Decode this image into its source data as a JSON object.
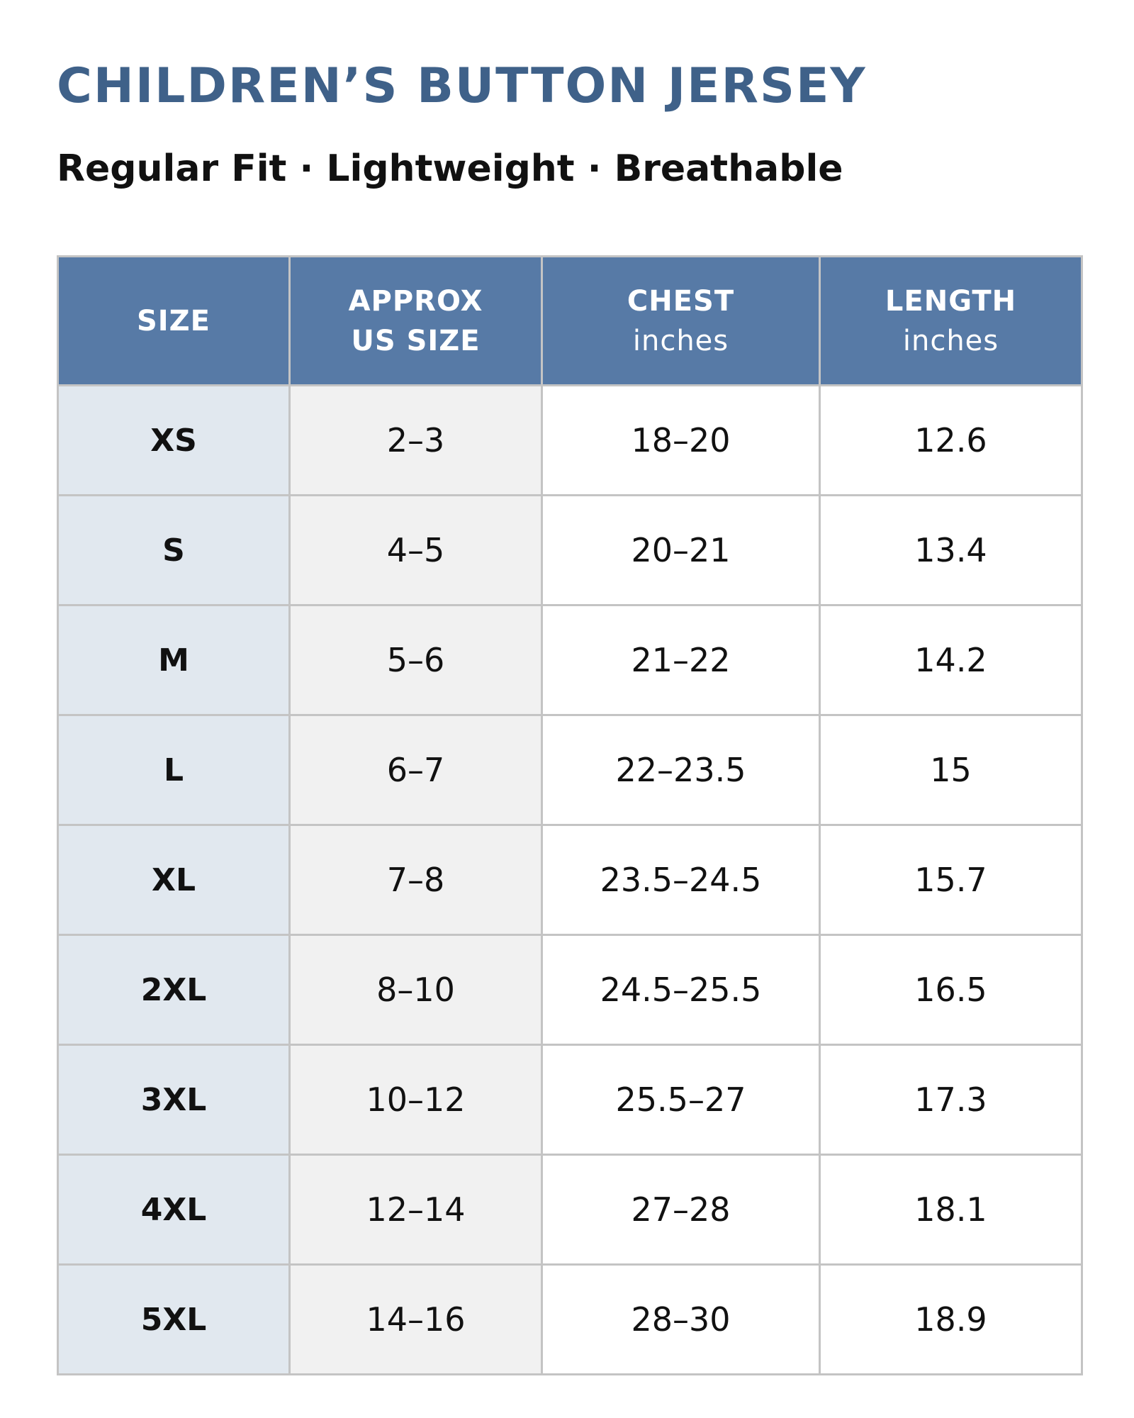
{
  "title": "CHILDREN’S BUTTON JERSEY",
  "subtitle": "Regular Fit · Lightweight · Breathable",
  "colors": {
    "title": "#3f6189",
    "header_bg": "#577aa6",
    "size_column_bg": "#e1e8ef",
    "us_column_bg": "#f1f1f1",
    "grid": "#c4c4c4"
  },
  "table": {
    "headers": [
      {
        "label": "SIZE",
        "unit": ""
      },
      {
        "label": "APPROX\nUS SIZE",
        "unit": ""
      },
      {
        "label": "CHEST",
        "unit": "inches"
      },
      {
        "label": "LENGTH",
        "unit": "inches"
      }
    ],
    "rows": [
      {
        "size": "XS",
        "us": "2–3",
        "chest": "18–20",
        "length": "12.6"
      },
      {
        "size": "S",
        "us": "4–5",
        "chest": "20–21",
        "length": "13.4"
      },
      {
        "size": "M",
        "us": "5–6",
        "chest": "21–22",
        "length": "14.2"
      },
      {
        "size": "L",
        "us": "6–7",
        "chest": "22–23.5",
        "length": "15"
      },
      {
        "size": "XL",
        "us": "7–8",
        "chest": "23.5–24.5",
        "length": "15.7"
      },
      {
        "size": "2XL",
        "us": "8–10",
        "chest": "24.5–25.5",
        "length": "16.5"
      },
      {
        "size": "3XL",
        "us": "10–12",
        "chest": "25.5–27",
        "length": "17.3"
      },
      {
        "size": "4XL",
        "us": "12–14",
        "chest": "27–28",
        "length": "18.1"
      },
      {
        "size": "5XL",
        "us": "14–16",
        "chest": "28–30",
        "length": "18.9"
      }
    ]
  }
}
